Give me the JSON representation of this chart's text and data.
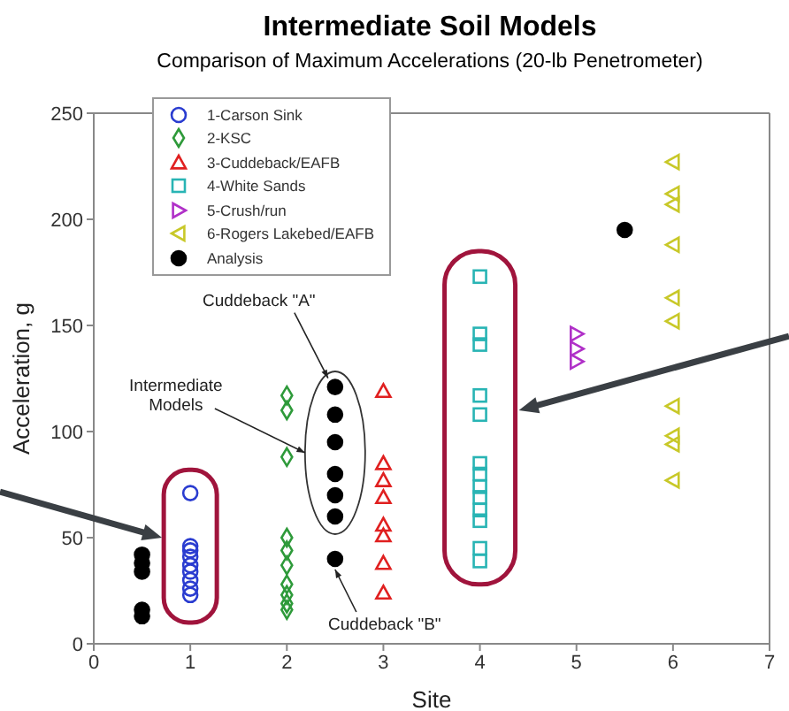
{
  "chart_data": {
    "type": "scatter",
    "title": "Intermediate Soil Models",
    "subtitle": "Comparison of Maximum Accelerations (20-lb Penetrometer)",
    "xlabel": "Site",
    "ylabel": "Acceleration, g",
    "xlim": [
      0,
      7
    ],
    "xticks": [
      0,
      1,
      2,
      3,
      4,
      5,
      6,
      7
    ],
    "ylim": [
      0,
      250
    ],
    "yticks": [
      0,
      50,
      100,
      150,
      200,
      250
    ],
    "grid": false,
    "legend": "top left",
    "series": [
      {
        "name": "1-Carson Sink",
        "color": "#2a3cd0",
        "marker": "circle-open",
        "x": [
          1,
          1,
          1,
          1,
          1,
          1,
          1,
          1,
          1
        ],
        "values": [
          71,
          46,
          44,
          41,
          37,
          34,
          30,
          26,
          23
        ]
      },
      {
        "name": "2-KSC",
        "color": "#2e9a3a",
        "marker": "diamond-open",
        "x": [
          2,
          2,
          2,
          2,
          2,
          2,
          2,
          2,
          2,
          2
        ],
        "values": [
          117,
          110,
          88,
          50,
          44,
          37,
          28,
          23,
          19,
          16
        ]
      },
      {
        "name": "3-Cuddeback/EAFB",
        "color": "#e02020",
        "marker": "triangle-open",
        "x": [
          3,
          3,
          3,
          3,
          3,
          3,
          3,
          3
        ],
        "values": [
          119,
          85,
          77,
          69,
          56,
          51,
          38,
          24
        ]
      },
      {
        "name": "4-White Sands",
        "color": "#28b4b4",
        "marker": "square-open",
        "x": [
          4,
          4,
          4,
          4,
          4,
          4,
          4,
          4,
          4,
          4,
          4,
          4,
          4
        ],
        "values": [
          173,
          146,
          141,
          117,
          108,
          85,
          80,
          74,
          69,
          63,
          58,
          45,
          39
        ]
      },
      {
        "name": "5-Crush/run",
        "color": "#b030c8",
        "marker": "triangle-right-open",
        "x": [
          5,
          5,
          5
        ],
        "values": [
          146,
          139,
          133
        ]
      },
      {
        "name": "6-Rogers Lakebed/EAFB",
        "color": "#c8c828",
        "marker": "triangle-left-open",
        "x": [
          6,
          6,
          6,
          6,
          6,
          6,
          6,
          6,
          6,
          6
        ],
        "values": [
          227,
          212,
          207,
          188,
          163,
          152,
          112,
          98,
          94,
          77
        ]
      },
      {
        "name": "Analysis",
        "color": "#000000",
        "marker": "circle",
        "x": [
          0.5,
          0.5,
          0.5,
          0.5,
          0.5,
          2.5,
          2.5,
          2.5,
          2.5,
          2.5,
          2.5,
          2.5,
          5.5
        ],
        "values": [
          42,
          38,
          34,
          16,
          13,
          121,
          108,
          95,
          80,
          70,
          60,
          40,
          195
        ]
      }
    ],
    "annotations": [
      {
        "text": "Cuddeback \"A\"",
        "x": 2.5,
        "y": 121
      },
      "Intermediate Models",
      {
        "text": "Cuddeback \"B\"",
        "x": 2.5,
        "y": 40
      }
    ]
  }
}
